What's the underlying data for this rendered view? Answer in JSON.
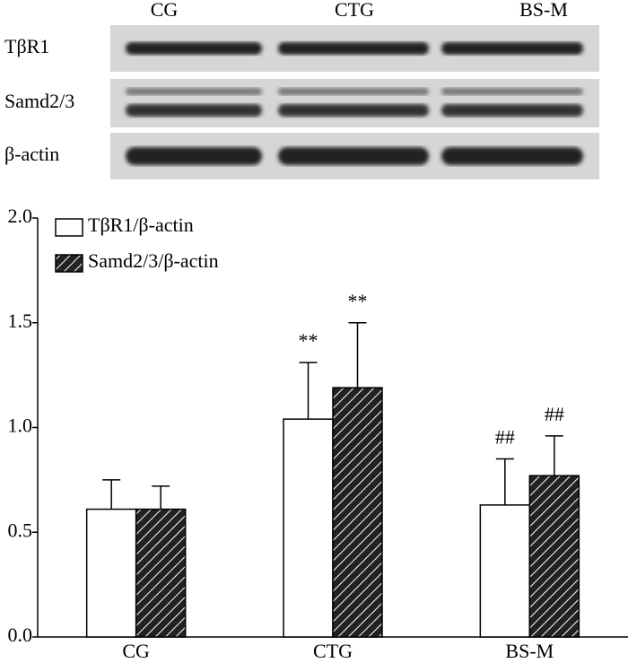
{
  "blot": {
    "columns": [
      "CG",
      "CTG",
      "BS-M"
    ],
    "rows": [
      "TβR1",
      "Samd2/3",
      "β-actin"
    ]
  },
  "chart_data": {
    "type": "bar",
    "categories": [
      "CG",
      "CTG",
      "BS-M"
    ],
    "series": [
      {
        "name": "TβR1/β-actin",
        "color": "#ffffff",
        "pattern": "none",
        "values": [
          0.61,
          1.04,
          0.63
        ],
        "errors": [
          0.14,
          0.27,
          0.22
        ],
        "annotations": [
          null,
          "**",
          "##"
        ]
      },
      {
        "name": "Samd2/3/β-actin",
        "color": "#222222",
        "pattern": "hatch",
        "values": [
          0.61,
          1.19,
          0.77
        ],
        "errors": [
          0.11,
          0.31,
          0.19
        ],
        "annotations": [
          null,
          "**",
          "##"
        ]
      }
    ],
    "ylim": [
      0,
      2.0
    ],
    "yticks": [
      {
        "value": 0,
        "label": "0.0"
      },
      {
        "value": 0.5,
        "label": "0.5"
      },
      {
        "value": 1.0,
        "label": "1.0"
      },
      {
        "value": 1.5,
        "label": "1.5"
      },
      {
        "value": 2.0,
        "label": "2.0"
      }
    ],
    "legend": "upper left",
    "grid": false
  }
}
